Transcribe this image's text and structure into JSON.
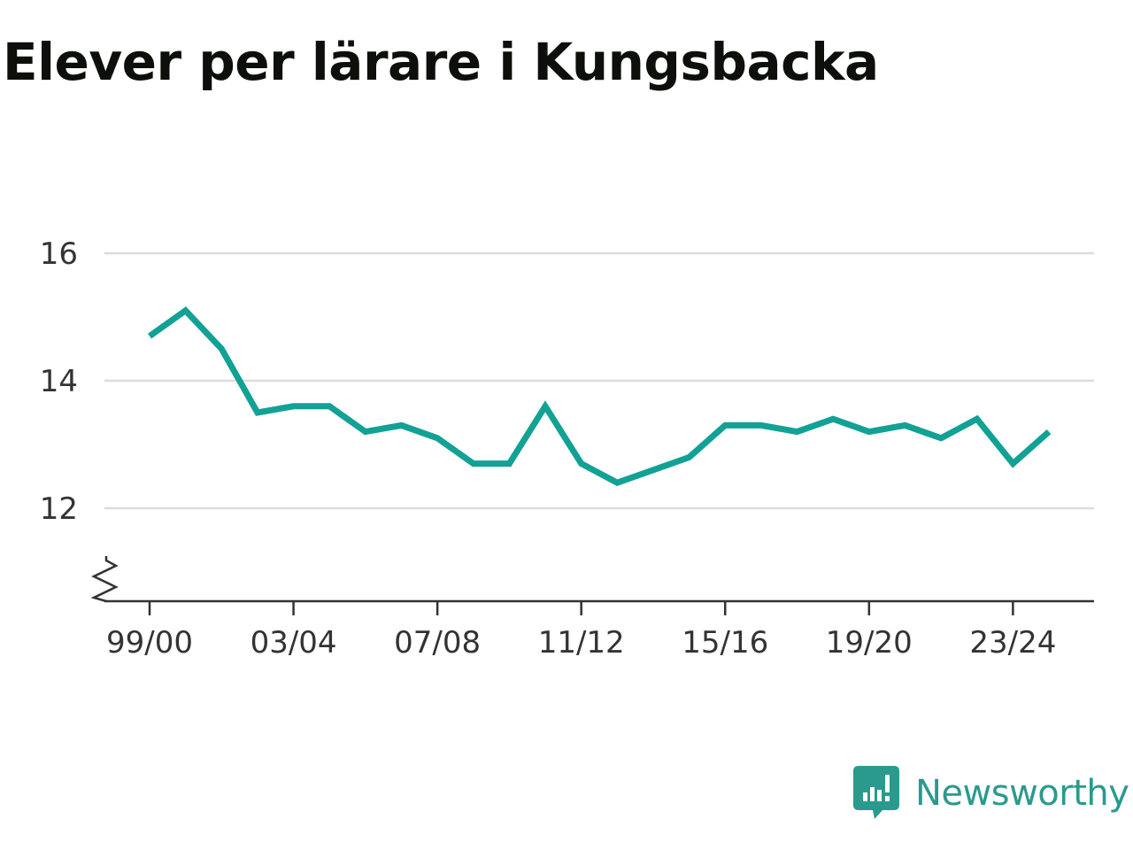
{
  "title": "Elever per lärare i Kungsbacka",
  "brand": {
    "name": "Newsworthy",
    "icon": "newsworthy-logo-icon",
    "color": "#2a9a8e"
  },
  "chart_data": {
    "type": "line",
    "title": "Elever per lärare i Kungsbacka",
    "xlabel": "",
    "ylabel": "",
    "line_color": "#12a195",
    "grid": true,
    "y_axis_break": true,
    "ylim": [
      10.5,
      16
    ],
    "yticks": [
      12,
      14,
      16
    ],
    "x": [
      "99/00",
      "00/01",
      "01/02",
      "02/03",
      "03/04",
      "04/05",
      "05/06",
      "06/07",
      "07/08",
      "08/09",
      "09/10",
      "10/11",
      "11/12",
      "12/13",
      "13/14",
      "14/15",
      "15/16",
      "16/17",
      "17/18",
      "18/19",
      "19/20",
      "20/21",
      "21/22",
      "22/23",
      "23/24",
      "24/25"
    ],
    "xticks": [
      "99/00",
      "03/04",
      "07/08",
      "11/12",
      "15/16",
      "19/20",
      "23/24"
    ],
    "values": [
      14.7,
      15.1,
      14.5,
      13.5,
      13.6,
      13.6,
      13.2,
      13.3,
      13.1,
      12.7,
      12.7,
      13.6,
      12.7,
      12.4,
      12.6,
      12.8,
      13.3,
      13.3,
      13.2,
      13.4,
      13.2,
      13.3,
      13.1,
      13.4,
      12.7,
      13.2
    ]
  }
}
